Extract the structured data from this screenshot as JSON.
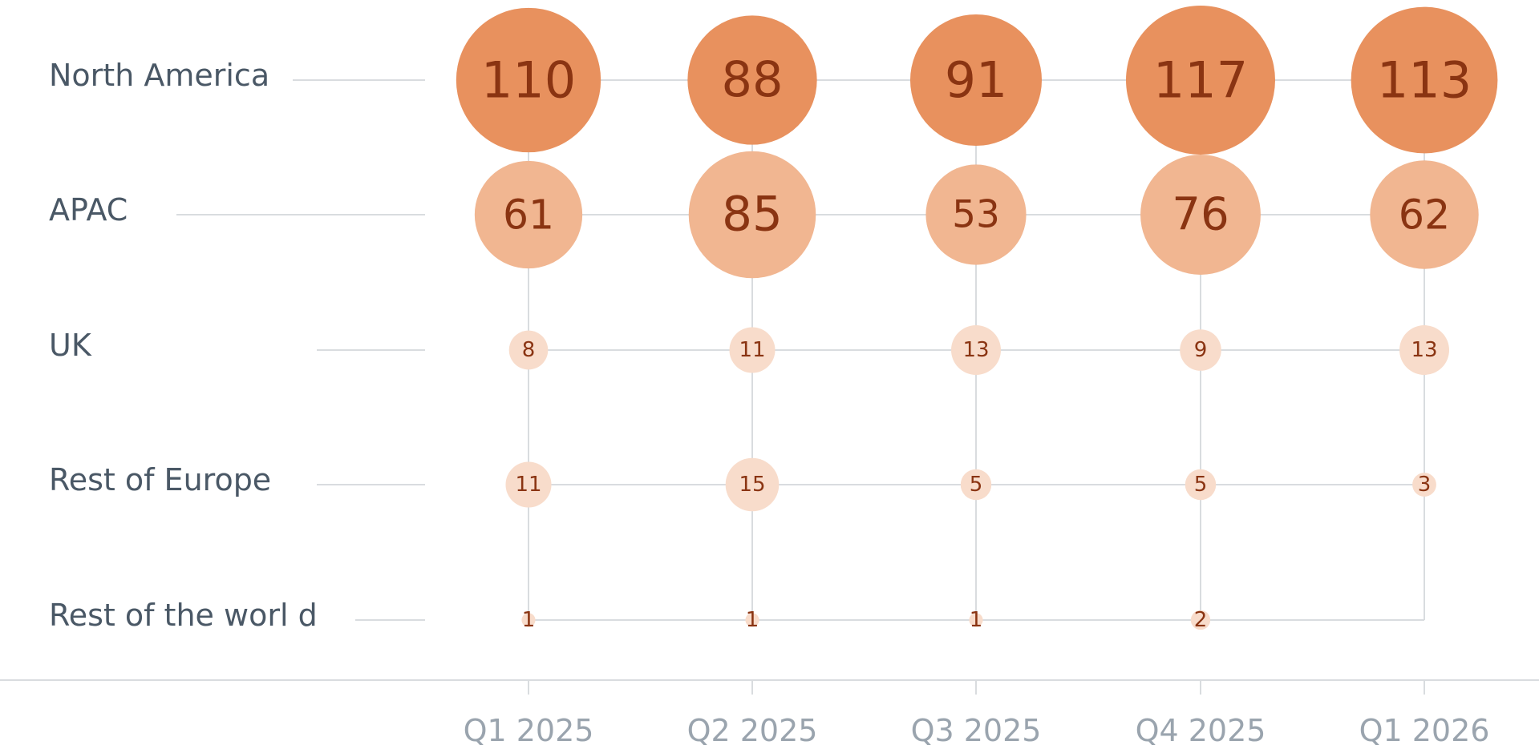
{
  "chart_data": {
    "type": "bubble-matrix",
    "categories": [
      "Q1 2025",
      "Q2 2025",
      "Q3 2025",
      "Q4 2025",
      "Q1 2026"
    ],
    "series": [
      {
        "name": "North America",
        "values": [
          110,
          88,
          91,
          117,
          113
        ]
      },
      {
        "name": "APAC",
        "values": [
          61,
          85,
          53,
          76,
          62
        ]
      },
      {
        "name": "UK",
        "values": [
          8,
          11,
          13,
          9,
          13
        ]
      },
      {
        "name": "Rest of Europe",
        "values": [
          11,
          15,
          5,
          5,
          3
        ]
      },
      {
        "name": "Rest of the worl d",
        "values": [
          1,
          1,
          1,
          2,
          null
        ]
      }
    ],
    "colors": {
      "strong": "#e8915e",
      "medium": "#f1b691",
      "light": "#f8dccb",
      "value_text": "#8a3412",
      "row_label": "#4a5866",
      "tick_label": "#9aa4ae",
      "grid": "#d9dcdf"
    },
    "grid": true,
    "legend": "none"
  }
}
